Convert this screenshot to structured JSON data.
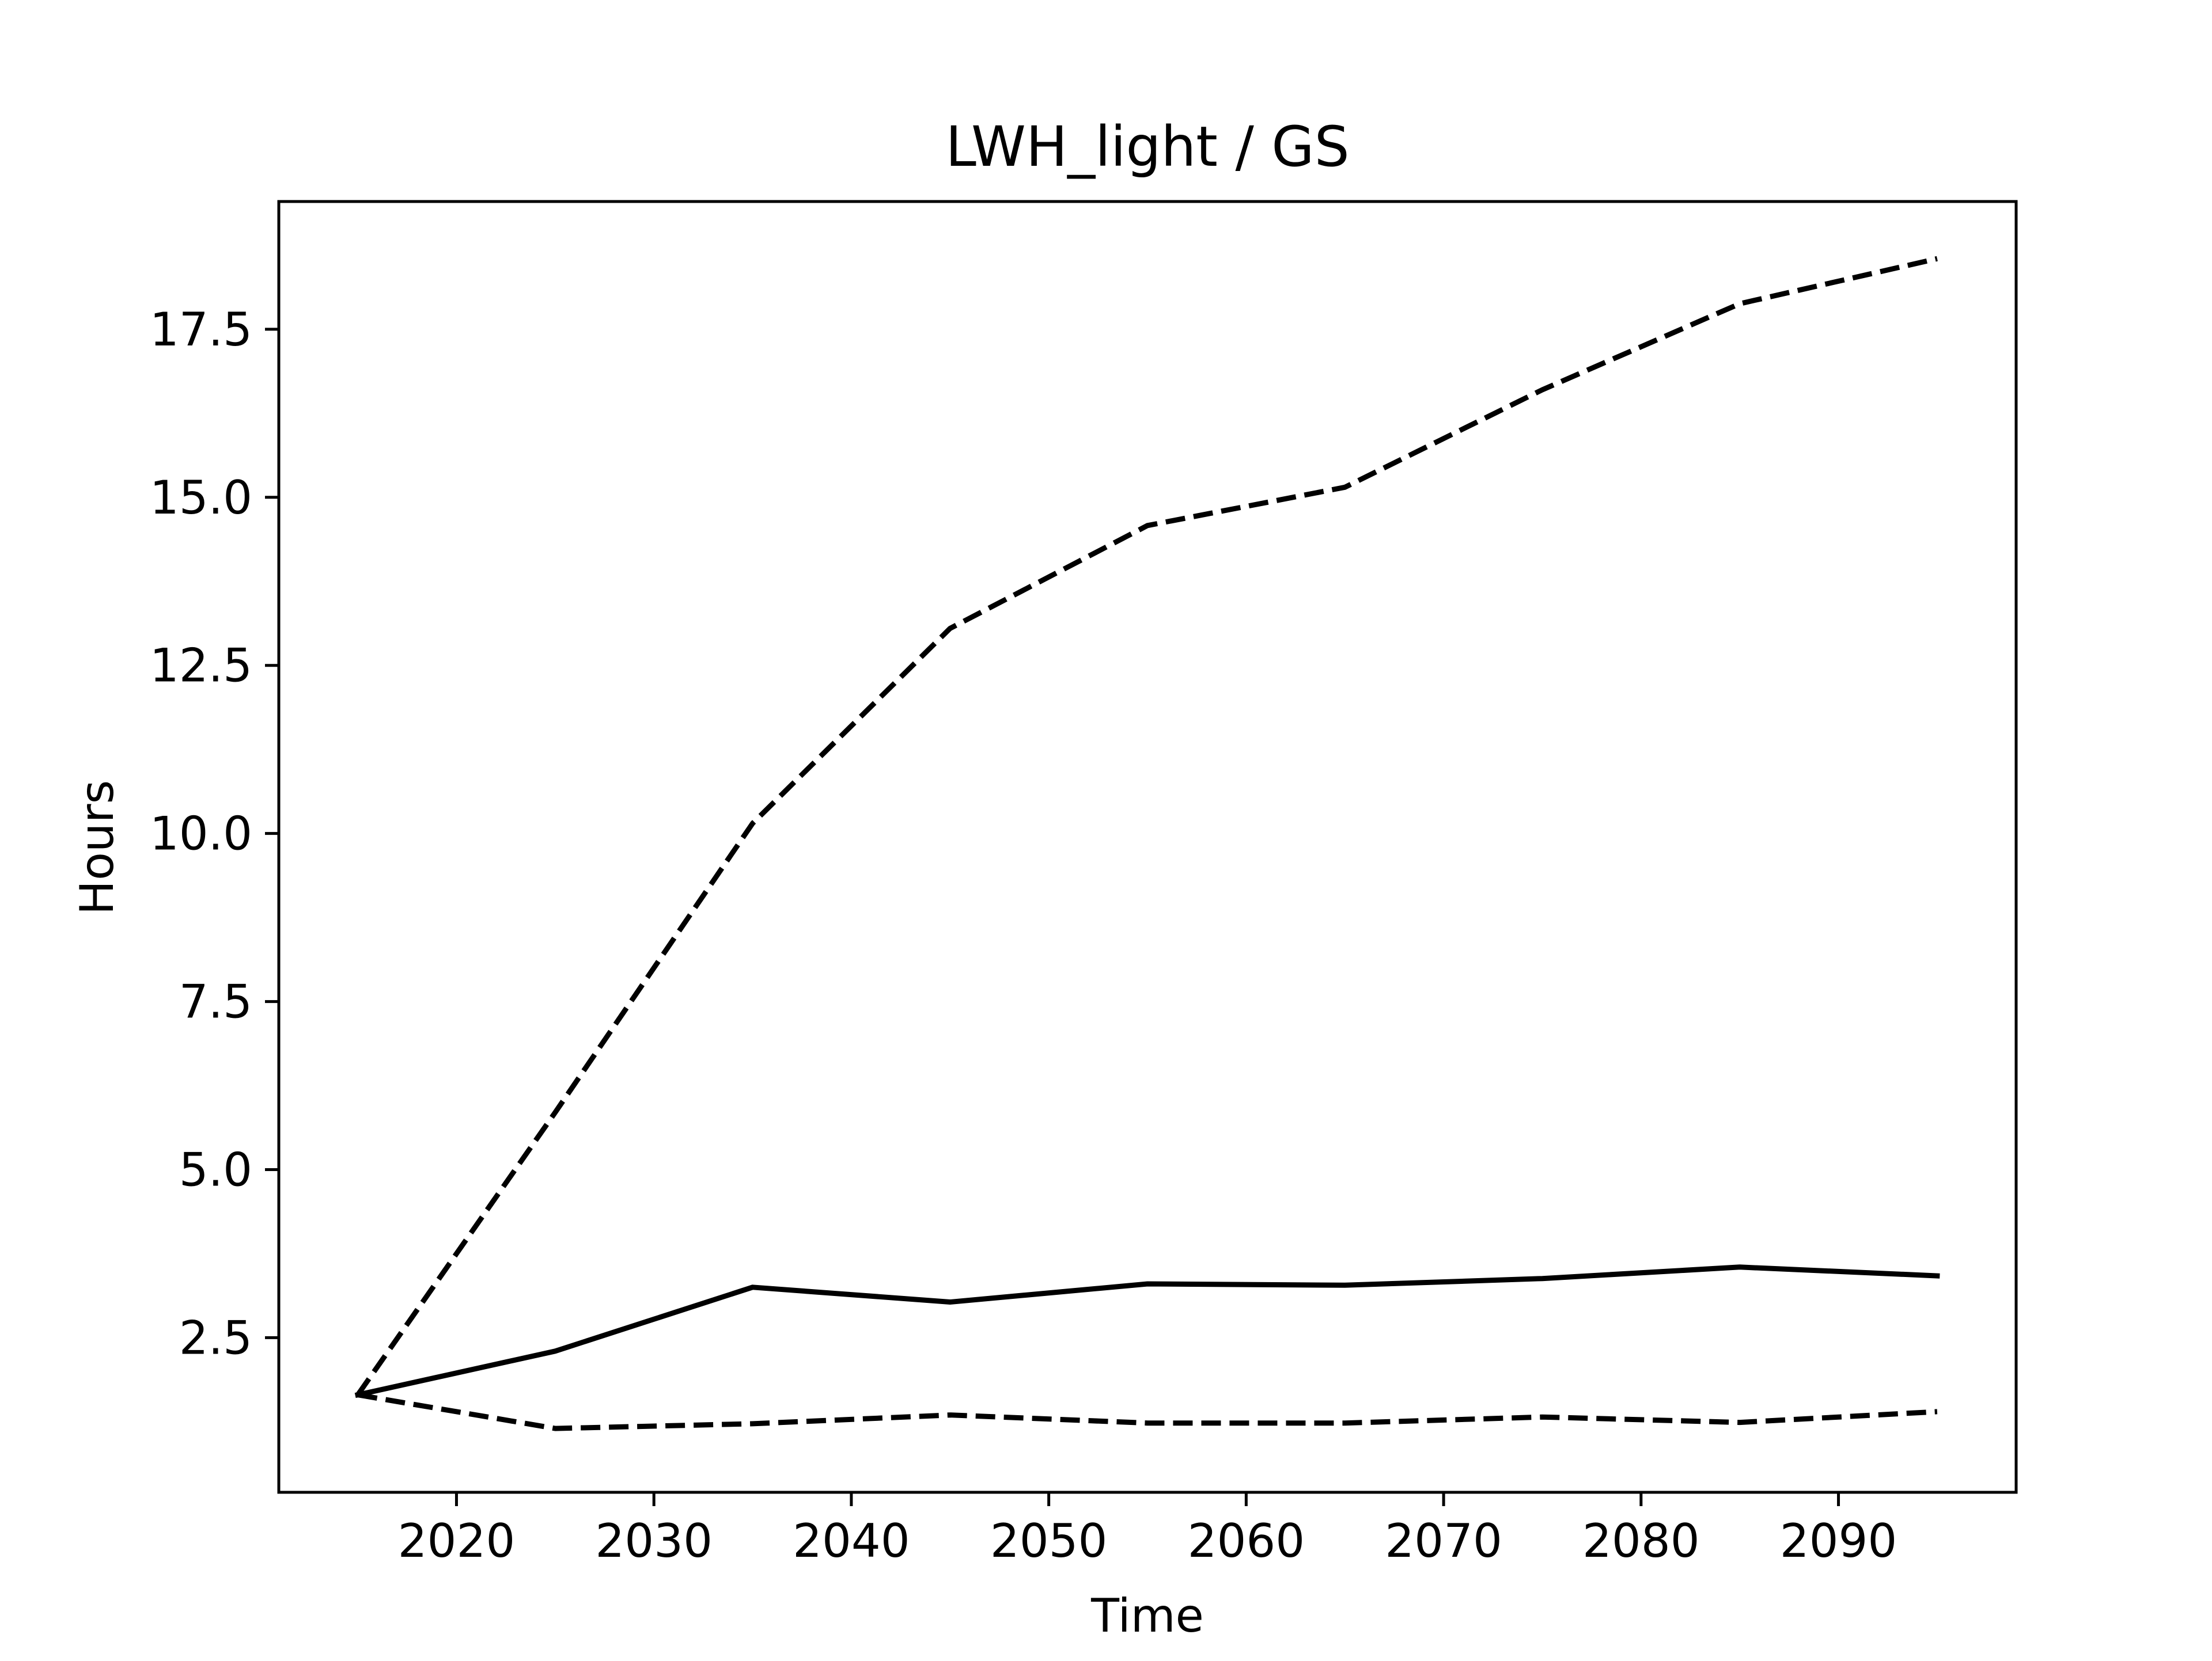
{
  "chart_data": {
    "type": "line",
    "title": "LWH_light / GS",
    "xlabel": "Time",
    "ylabel": "Hours",
    "x": [
      2015,
      2025,
      2035,
      2045,
      2055,
      2065,
      2075,
      2085,
      2095
    ],
    "xlim": [
      2011,
      2099
    ],
    "ylim": [
      0.2,
      19.4
    ],
    "xticks": [
      2020,
      2030,
      2040,
      2050,
      2060,
      2070,
      2080,
      2090
    ],
    "xtick_labels": [
      "2020",
      "2030",
      "2040",
      "2050",
      "2060",
      "2070",
      "2080",
      "2090"
    ],
    "yticks": [
      2.5,
      5.0,
      7.5,
      10.0,
      12.5,
      15.0,
      17.5
    ],
    "ytick_labels": [
      "2.5",
      "5.0",
      "7.5",
      "10.0",
      "12.5",
      "15.0",
      "17.5"
    ],
    "grid": false,
    "legend": "none",
    "series": [
      {
        "style": "solid",
        "color": "#000000",
        "values": [
          1.65,
          2.3,
          3.25,
          3.03,
          3.3,
          3.28,
          3.38,
          3.55,
          3.42
        ]
      },
      {
        "style": "dashed",
        "color": "#000000",
        "values": [
          1.65,
          5.85,
          10.15,
          13.05,
          14.58,
          15.15,
          16.6,
          17.88,
          18.55
        ]
      },
      {
        "style": "dashed",
        "color": "#000000",
        "values": [
          1.65,
          1.15,
          1.22,
          1.35,
          1.23,
          1.23,
          1.32,
          1.24,
          1.4
        ]
      }
    ]
  }
}
